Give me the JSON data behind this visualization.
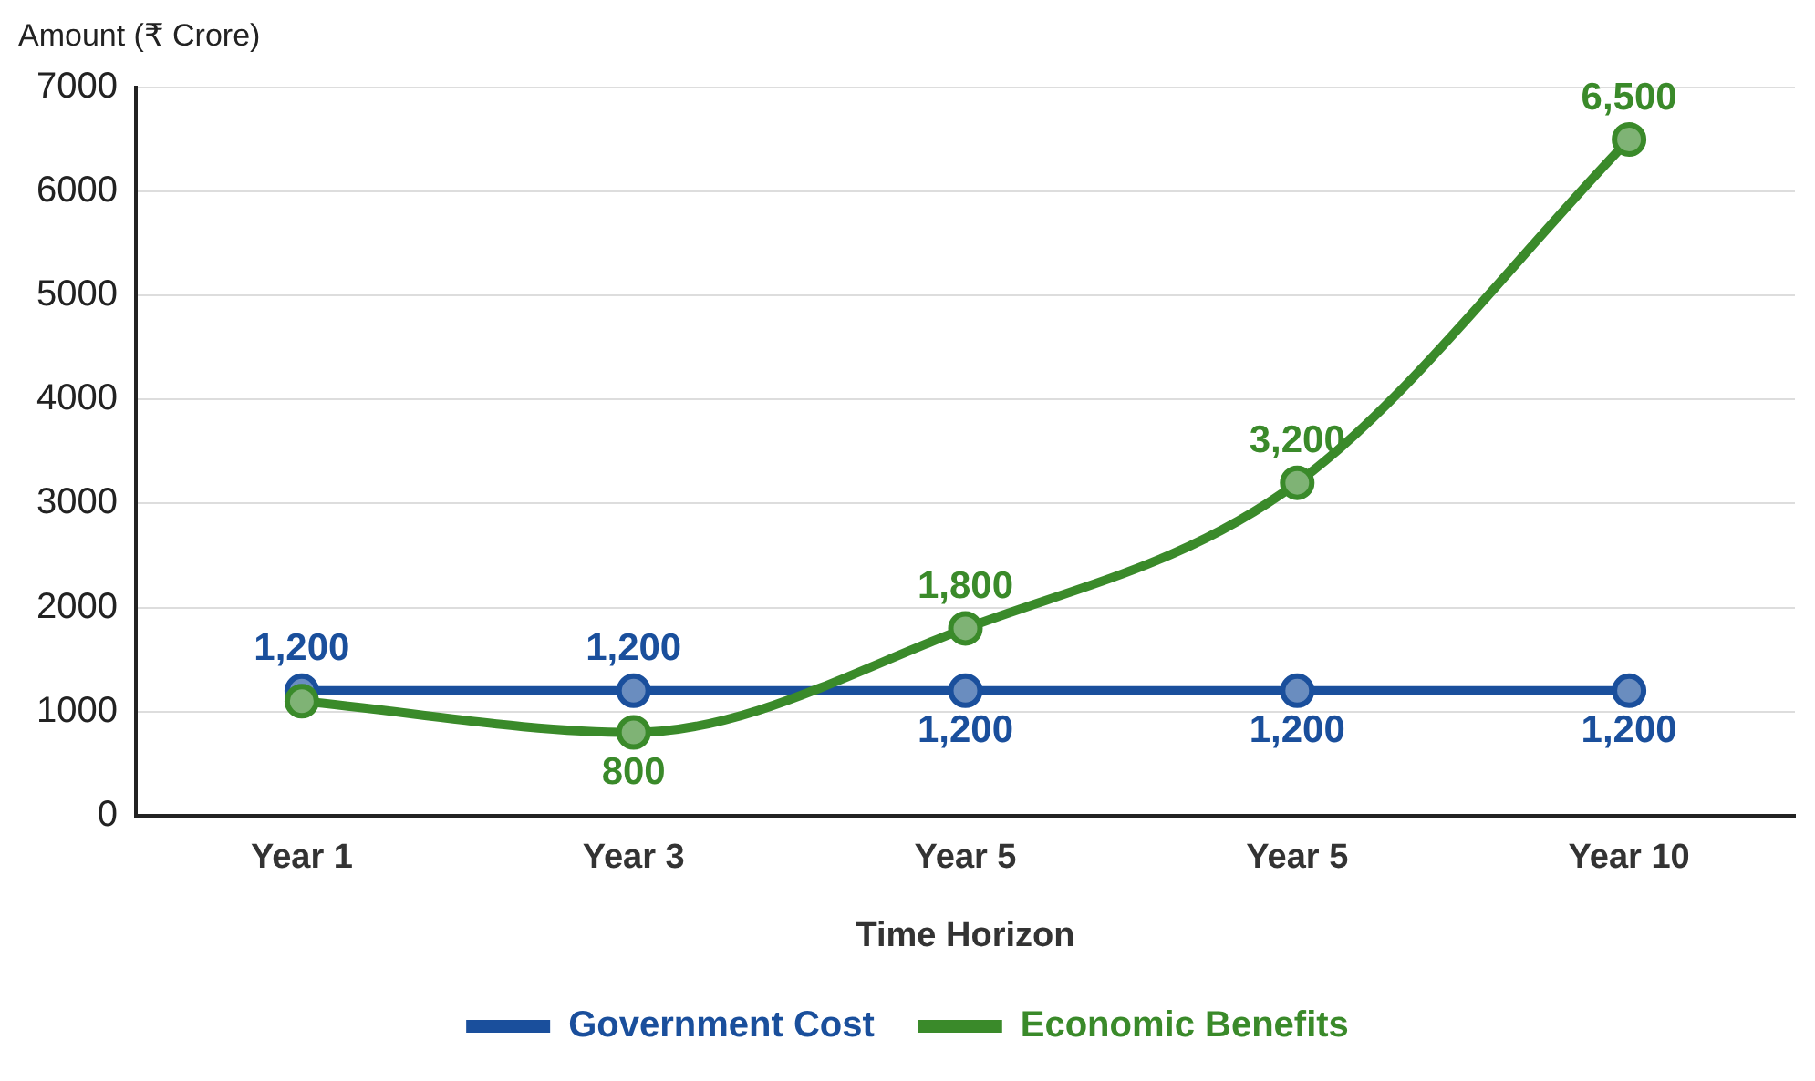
{
  "chart_data": {
    "type": "line",
    "xlabel": "Time Horizon",
    "ylabel": "Amount (₹ Crore)",
    "categories": [
      "Year 1",
      "Year 3",
      "Year 5",
      "Year 5",
      "Year 10"
    ],
    "ylim": [
      0,
      7000
    ],
    "yticks": [
      0,
      1000,
      2000,
      3000,
      4000,
      5000,
      6000,
      7000
    ],
    "grid": "y",
    "legend": "bottom",
    "marker": "circle",
    "series": [
      {
        "name": "Government Cost",
        "color": "#1a4f9c",
        "values": [
          1200,
          1200,
          1200,
          1200,
          1200
        ],
        "value_labels": [
          "1,200",
          "1,200",
          "1,200",
          "1,200",
          "1,200"
        ]
      },
      {
        "name": "Economic Benefits",
        "color": "#3a8a2a",
        "values": [
          1100,
          800,
          1800,
          3200,
          6500
        ],
        "value_labels": [
          null,
          "800",
          "1,800",
          "3,200",
          "6,500"
        ]
      }
    ]
  }
}
